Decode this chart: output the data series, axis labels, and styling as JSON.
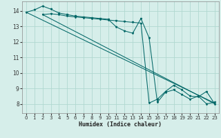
{
  "xlabel": "Humidex (Indice chaleur)",
  "bg_color": "#d6eeea",
  "grid_color": "#b0d8d0",
  "line_color": "#006666",
  "xlim": [
    -0.5,
    23.5
  ],
  "ylim": [
    7.4,
    14.6
  ],
  "xticks": [
    0,
    1,
    2,
    3,
    4,
    5,
    6,
    7,
    8,
    9,
    10,
    11,
    12,
    13,
    14,
    15,
    16,
    17,
    18,
    19,
    20,
    21,
    22,
    23
  ],
  "yticks": [
    8,
    9,
    10,
    11,
    12,
    13,
    14
  ],
  "line1_x": [
    0,
    1,
    2,
    3,
    4,
    5,
    6,
    7,
    8,
    9,
    10,
    11,
    12,
    13,
    14,
    15,
    16,
    17,
    18,
    19,
    20,
    21,
    22,
    23
  ],
  "line1_y": [
    13.9,
    14.05,
    14.3,
    14.1,
    13.85,
    13.75,
    13.65,
    13.6,
    13.55,
    13.5,
    13.45,
    12.95,
    12.7,
    12.55,
    13.5,
    12.25,
    8.1,
    8.75,
    8.9,
    8.6,
    8.3,
    8.5,
    8.0,
    8.1
  ],
  "line2_x": [
    2,
    3,
    4,
    5,
    6,
    7,
    8,
    9,
    10,
    11,
    12,
    13,
    14,
    15,
    16,
    17,
    18,
    19,
    20,
    21,
    22,
    23
  ],
  "line2_y": [
    13.75,
    13.8,
    13.75,
    13.65,
    13.6,
    13.55,
    13.5,
    13.45,
    13.4,
    13.35,
    13.3,
    13.25,
    13.2,
    8.05,
    8.3,
    8.8,
    9.2,
    8.9,
    8.5,
    8.45,
    8.8,
    8.0
  ],
  "line3_x": [
    0,
    23
  ],
  "line3_y": [
    13.9,
    8.05
  ],
  "line4_x": [
    2,
    23
  ],
  "line4_y": [
    13.75,
    8.0
  ],
  "lw": 0.75,
  "ms": 1.5
}
